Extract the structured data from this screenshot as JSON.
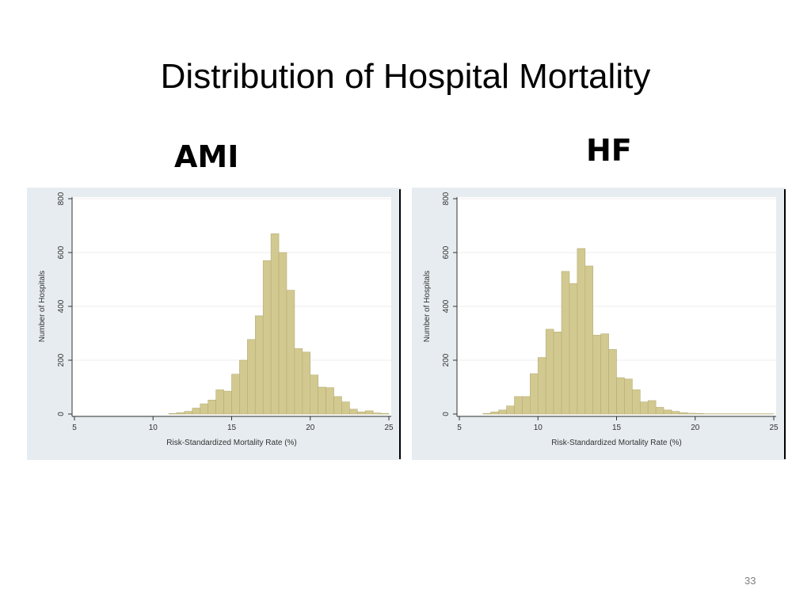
{
  "slide": {
    "title": "Distribution of Hospital Mortality",
    "page_number": "33"
  },
  "colors": {
    "panel_background": "#e6ecef",
    "plot_background": "#ffffff",
    "bar_fill": "#d2c991",
    "bar_stroke": "#b6ad72",
    "grid": "#ececec"
  },
  "chart_data": [
    {
      "type": "bar",
      "panel_label": "AMI",
      "xlabel": "Risk-Standardized Mortality Rate (%)",
      "ylabel": "Number of Hospitals",
      "xlim": [
        5,
        25
      ],
      "ylim": [
        0,
        800
      ],
      "xticks": [
        5,
        10,
        15,
        20,
        25
      ],
      "yticks": [
        0,
        200,
        400,
        600,
        800
      ],
      "grid": true,
      "bin_width": 0.5,
      "bins_start": [
        11,
        11.5,
        12,
        12.5,
        13,
        13.5,
        14,
        14.5,
        15,
        15.5,
        16,
        16.5,
        17,
        17.5,
        18,
        18.5,
        19,
        19.5,
        20,
        20.5,
        21,
        21.5,
        22,
        22.5,
        23,
        23.5,
        24,
        24.5
      ],
      "values": [
        2,
        5,
        10,
        22,
        38,
        52,
        90,
        85,
        148,
        200,
        277,
        365,
        570,
        670,
        600,
        460,
        243,
        230,
        145,
        100,
        98,
        65,
        45,
        18,
        8,
        12,
        4,
        2
      ]
    },
    {
      "type": "bar",
      "panel_label": "HF",
      "xlabel": "Risk-Standardized Mortality Rate (%)",
      "ylabel": "Number of Hospitals",
      "xlim": [
        5,
        25
      ],
      "ylim": [
        0,
        800
      ],
      "xticks": [
        5,
        10,
        15,
        20,
        25
      ],
      "yticks": [
        0,
        200,
        400,
        600,
        800
      ],
      "grid": true,
      "bin_width": 0.5,
      "bins_start": [
        6.5,
        7,
        7.5,
        8,
        8.5,
        9,
        9.5,
        10,
        10.5,
        11,
        11.5,
        12,
        12.5,
        13,
        13.5,
        14,
        14.5,
        15,
        15.5,
        16,
        16.5,
        17,
        17.5,
        18,
        18.5,
        19,
        19.5,
        20,
        20.5,
        21,
        21.5,
        22,
        22.5,
        23,
        23.5,
        24,
        24.5
      ],
      "values": [
        2,
        8,
        15,
        30,
        65,
        65,
        150,
        210,
        315,
        305,
        530,
        485,
        615,
        550,
        293,
        298,
        240,
        135,
        130,
        90,
        45,
        50,
        25,
        15,
        10,
        5,
        3,
        2,
        1,
        1,
        1,
        1,
        1,
        1,
        1,
        1,
        1
      ]
    }
  ]
}
